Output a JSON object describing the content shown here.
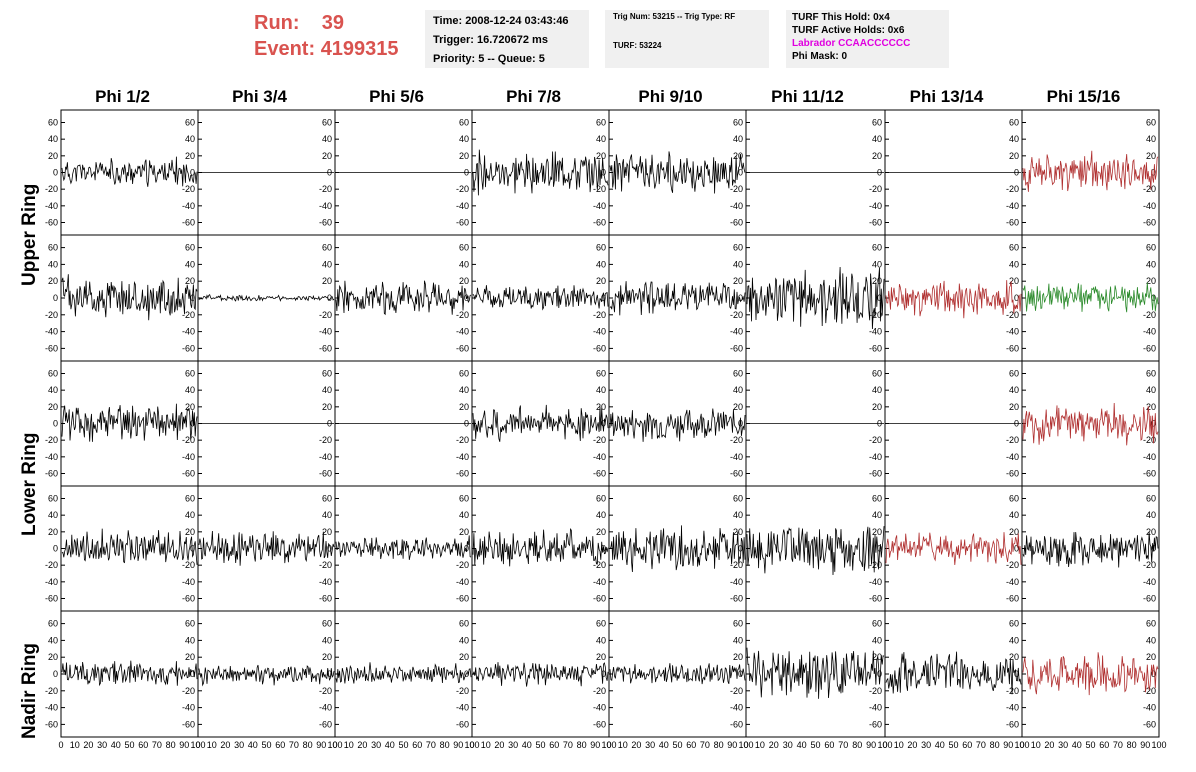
{
  "header": {
    "run_label": "Run:",
    "run_value": "39",
    "event_label": "Event:",
    "event_value": "4199315"
  },
  "info_box1": {
    "time": "Time: 2008-12-24 03:43:46",
    "trigger": "Trigger: 16.720672 ms",
    "priority": "Priority: 5 -- Queue: 5"
  },
  "info_box2": {
    "trig": "Trig Num: 53215 -- Trig Type: RF",
    "turf": "TURF: 53224"
  },
  "info_box3": {
    "this_hold": "TURF This Hold: 0x4",
    "active_holds": "TURF Active Holds: 0x6",
    "labrador": "Labrador CCAACCCCCC",
    "phi_mask": "Phi Mask: 0"
  },
  "columns": [
    "Phi 1/2",
    "Phi 3/4",
    "Phi 5/6",
    "Phi 7/8",
    "Phi 9/10",
    "Phi 11/12",
    "Phi 13/14",
    "Phi 15/16"
  ],
  "ring_labels": [
    "Upper Ring",
    "Lower Ring",
    "Nadir Ring"
  ],
  "colors": {
    "black": "#000000",
    "red": "#b03030",
    "green": "#2a8a2a",
    "run_text": "#d9534f",
    "labrador": "#e000e0",
    "box_bg": "#f0f0f0"
  },
  "y_ticks": [
    "60",
    "40",
    "20",
    "0",
    "-20",
    "-40",
    "-60"
  ],
  "x_ticks": [
    "0",
    "10",
    "20",
    "30",
    "40",
    "50",
    "60",
    "70",
    "80",
    "90",
    "100"
  ],
  "chart_data": {
    "type": "line",
    "description_rows": [
      "upper-1",
      "upper-2",
      "lower-1",
      "lower-2",
      "nadir"
    ],
    "ylim": [
      -75,
      75
    ],
    "xlim": [
      0,
      100
    ],
    "panels": [
      [
        {
          "amp": 14,
          "color": "black"
        },
        {
          "amp": 0,
          "color": "black"
        },
        {
          "amp": 0,
          "color": "black"
        },
        {
          "amp": 22,
          "color": "black"
        },
        {
          "amp": 20,
          "color": "black"
        },
        {
          "amp": 0,
          "color": "black"
        },
        {
          "amp": 0,
          "color": "black"
        },
        {
          "amp": 20,
          "color": "red"
        }
      ],
      [
        {
          "amp": 22,
          "color": "black"
        },
        {
          "amp": 3,
          "color": "black"
        },
        {
          "amp": 16,
          "color": "black"
        },
        {
          "amp": 12,
          "color": "black"
        },
        {
          "amp": 16,
          "color": "black"
        },
        {
          "amp": 30,
          "color": "black"
        },
        {
          "amp": 18,
          "color": "red"
        },
        {
          "amp": 14,
          "color": "green"
        }
      ],
      [
        {
          "amp": 18,
          "color": "black"
        },
        {
          "amp": 0,
          "color": "black"
        },
        {
          "amp": 0,
          "color": "black"
        },
        {
          "amp": 18,
          "color": "black"
        },
        {
          "amp": 16,
          "color": "black"
        },
        {
          "amp": 0,
          "color": "black"
        },
        {
          "amp": 0,
          "color": "black"
        },
        {
          "amp": 20,
          "color": "red"
        }
      ],
      [
        {
          "amp": 18,
          "color": "black"
        },
        {
          "amp": 16,
          "color": "black"
        },
        {
          "amp": 12,
          "color": "black"
        },
        {
          "amp": 18,
          "color": "black"
        },
        {
          "amp": 22,
          "color": "black"
        },
        {
          "amp": 26,
          "color": "black"
        },
        {
          "amp": 16,
          "color": "red"
        },
        {
          "amp": 18,
          "color": "black"
        }
      ],
      [
        {
          "amp": 12,
          "color": "black"
        },
        {
          "amp": 10,
          "color": "black"
        },
        {
          "amp": 10,
          "color": "black"
        },
        {
          "amp": 12,
          "color": "black"
        },
        {
          "amp": 10,
          "color": "black"
        },
        {
          "amp": 26,
          "color": "black"
        },
        {
          "amp": 20,
          "color": "black"
        },
        {
          "amp": 20,
          "color": "red"
        }
      ]
    ]
  }
}
